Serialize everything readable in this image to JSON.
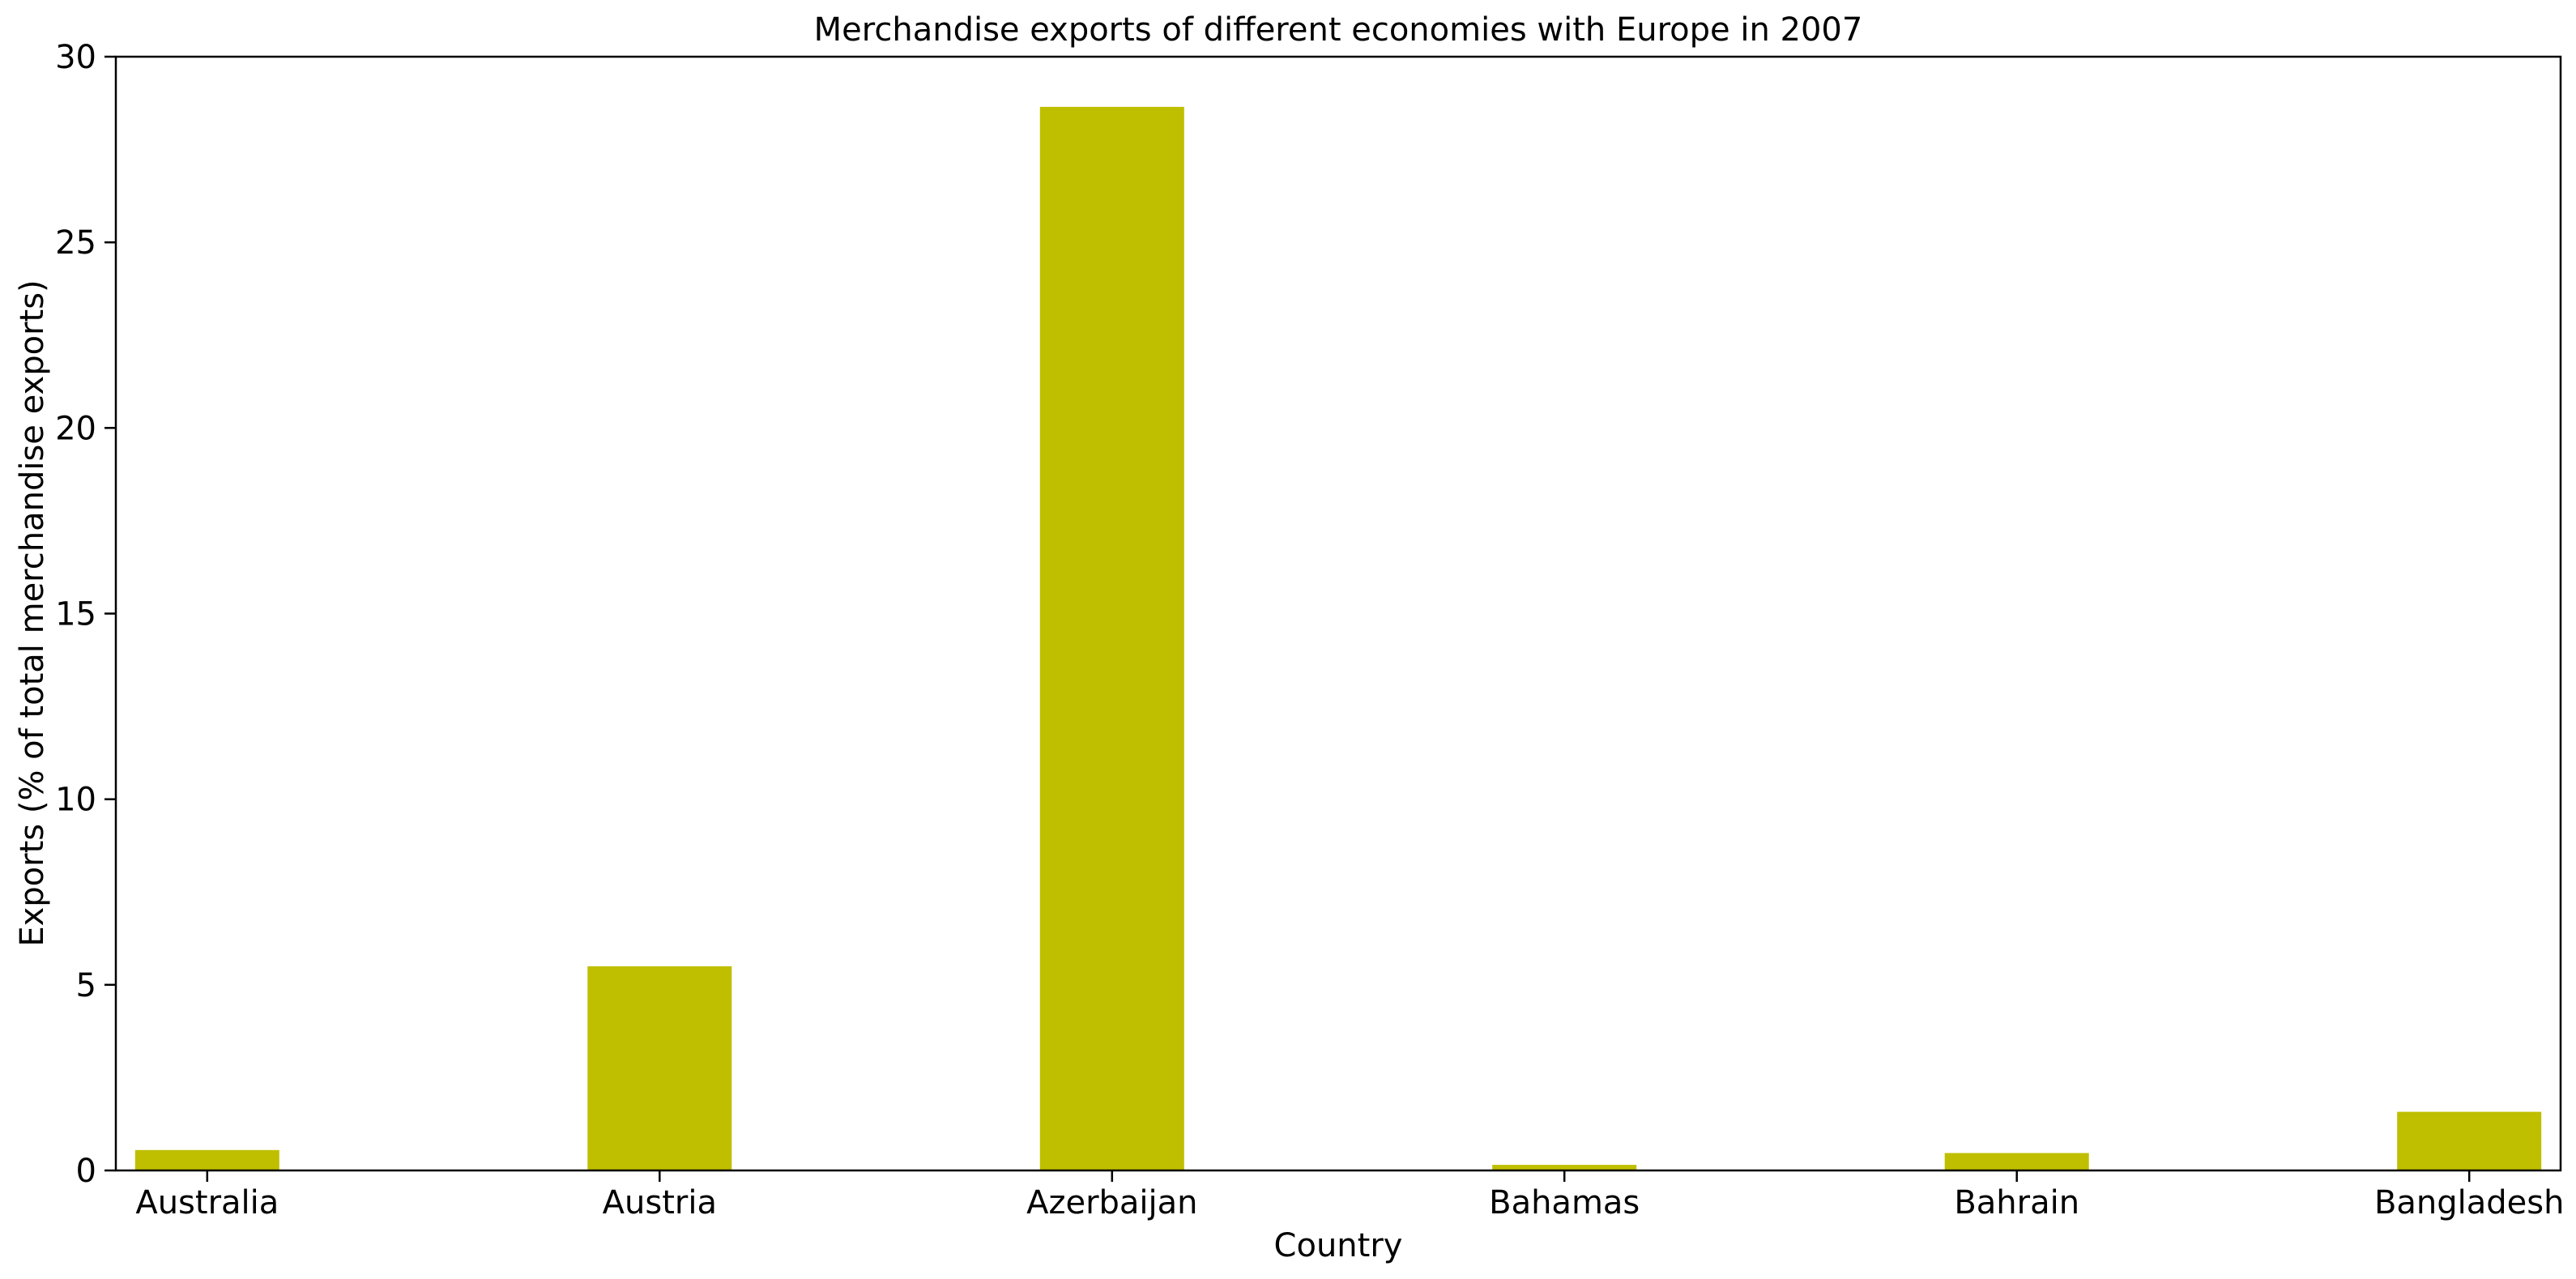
{
  "chart_data": {
    "type": "bar",
    "title": "Merchandise exports of different economies with Europe in 2007",
    "xlabel": "Country",
    "ylabel": "Exports (% of total merchandise exports)",
    "categories": [
      "Australia",
      "Austria",
      "Azerbaijan",
      "Bahamas",
      "Bahrain",
      "Bangladesh"
    ],
    "values": [
      0.55,
      5.5,
      28.65,
      0.15,
      0.47,
      1.58
    ],
    "ylim": [
      0,
      30
    ],
    "yticks": [
      0,
      5,
      10,
      15,
      20,
      25,
      30
    ],
    "grid": false,
    "legend": "none",
    "bar_color": "#bfbf00"
  }
}
